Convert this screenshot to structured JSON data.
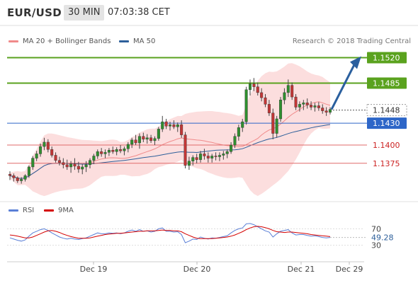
{
  "header": {
    "symbol": "EUR/USD",
    "timeframe": "30 MIN",
    "time": "07:03:38 CET"
  },
  "legend": {
    "bollinger": {
      "label": "MA 20 + Bollinger Bands",
      "color": "#f08a8a"
    },
    "ma50": {
      "label": "MA 50",
      "color": "#2d5f9a"
    },
    "rsi": {
      "label": "RSI",
      "color": "#5a7fd6"
    },
    "rsi_ma": {
      "label": "9MA",
      "color": "#d40000"
    }
  },
  "credit": "Research © 2018 Trading Central",
  "colors": {
    "target": "#5aa21e",
    "pivot": "#2d66c8",
    "support": "#e06a6a",
    "arrow": "#2a5f9e"
  },
  "levels": [
    {
      "value": 1.152,
      "label": "1.1520",
      "kind": "target"
    },
    {
      "value": 1.1485,
      "label": "1.1485",
      "kind": "target"
    },
    {
      "value": 1.1448,
      "label": "1.1448",
      "kind": "current"
    },
    {
      "value": 1.143,
      "label": "1.1430",
      "kind": "pivot"
    },
    {
      "value": 1.14,
      "label": "1.1400",
      "kind": "support"
    },
    {
      "value": 1.1375,
      "label": "1.1375",
      "kind": "support"
    }
  ],
  "chart_data": {
    "type": "candlestick",
    "x_labels": [
      "Dec 19",
      "Dec 20",
      "Dec 21",
      "Dec 29"
    ],
    "ylim": [
      1.1335,
      1.1535
    ],
    "candles": [
      [
        1.136,
        1.1364,
        1.1352,
        1.1358
      ],
      [
        1.1358,
        1.1361,
        1.135,
        1.1355
      ],
      [
        1.1355,
        1.1357,
        1.1348,
        1.1351
      ],
      [
        1.1351,
        1.1356,
        1.1347,
        1.1353
      ],
      [
        1.1353,
        1.136,
        1.135,
        1.1358
      ],
      [
        1.1358,
        1.1372,
        1.1355,
        1.137
      ],
      [
        1.137,
        1.1385,
        1.1366,
        1.1382
      ],
      [
        1.1382,
        1.1392,
        1.1378,
        1.1388
      ],
      [
        1.1388,
        1.1402,
        1.1384,
        1.1398
      ],
      [
        1.1398,
        1.141,
        1.1393,
        1.1404
      ],
      [
        1.1404,
        1.1408,
        1.139,
        1.1394
      ],
      [
        1.1394,
        1.1398,
        1.1383,
        1.1386
      ],
      [
        1.1386,
        1.139,
        1.1376,
        1.1379
      ],
      [
        1.1379,
        1.1384,
        1.1372,
        1.1376
      ],
      [
        1.1376,
        1.1382,
        1.1368,
        1.1373
      ],
      [
        1.1373,
        1.138,
        1.1366,
        1.137
      ],
      [
        1.137,
        1.1378,
        1.1362,
        1.1374
      ],
      [
        1.1374,
        1.1382,
        1.1366,
        1.1371
      ],
      [
        1.1371,
        1.1377,
        1.1362,
        1.1367
      ],
      [
        1.1367,
        1.1374,
        1.136,
        1.137
      ],
      [
        1.137,
        1.1378,
        1.1363,
        1.1373
      ],
      [
        1.1373,
        1.1382,
        1.1368,
        1.1379
      ],
      [
        1.1379,
        1.1388,
        1.1374,
        1.1385
      ],
      [
        1.1385,
        1.1394,
        1.1381,
        1.1391
      ],
      [
        1.1391,
        1.1396,
        1.1384,
        1.1388
      ],
      [
        1.1388,
        1.1394,
        1.1382,
        1.139
      ],
      [
        1.139,
        1.1396,
        1.1385,
        1.1393
      ],
      [
        1.1393,
        1.1398,
        1.1388,
        1.1391
      ],
      [
        1.1391,
        1.1397,
        1.1386,
        1.1394
      ],
      [
        1.1394,
        1.14,
        1.1389,
        1.1392
      ],
      [
        1.1392,
        1.1398,
        1.1386,
        1.1395
      ],
      [
        1.1395,
        1.1404,
        1.139,
        1.1401
      ],
      [
        1.1401,
        1.141,
        1.1396,
        1.1407
      ],
      [
        1.1407,
        1.1414,
        1.14,
        1.1403
      ],
      [
        1.1403,
        1.1416,
        1.1395,
        1.1412
      ],
      [
        1.1412,
        1.1417,
        1.1404,
        1.1408
      ],
      [
        1.1408,
        1.1415,
        1.1402,
        1.141
      ],
      [
        1.141,
        1.1414,
        1.1403,
        1.1406
      ],
      [
        1.1406,
        1.1412,
        1.14,
        1.1409
      ],
      [
        1.1409,
        1.1425,
        1.1406,
        1.1422
      ],
      [
        1.1422,
        1.144,
        1.1418,
        1.1432
      ],
      [
        1.1432,
        1.1436,
        1.1422,
        1.1426
      ],
      [
        1.1426,
        1.1432,
        1.142,
        1.1428
      ],
      [
        1.1428,
        1.1434,
        1.1422,
        1.1425
      ],
      [
        1.1425,
        1.1431,
        1.1418,
        1.1428
      ],
      [
        1.1428,
        1.1434,
        1.141,
        1.1414
      ],
      [
        1.1414,
        1.1418,
        1.1368,
        1.1372
      ],
      [
        1.1372,
        1.1384,
        1.1366,
        1.1378
      ],
      [
        1.1378,
        1.1386,
        1.1372,
        1.1383
      ],
      [
        1.1383,
        1.1388,
        1.1375,
        1.138
      ],
      [
        1.138,
        1.1392,
        1.1376,
        1.1388
      ],
      [
        1.1388,
        1.1395,
        1.138,
        1.1385
      ],
      [
        1.1385,
        1.139,
        1.1376,
        1.1382
      ],
      [
        1.1382,
        1.1388,
        1.1376,
        1.1385
      ],
      [
        1.1385,
        1.139,
        1.1379,
        1.1384
      ],
      [
        1.1384,
        1.139,
        1.1378,
        1.1386
      ],
      [
        1.1386,
        1.1392,
        1.138,
        1.1388
      ],
      [
        1.1388,
        1.1394,
        1.1382,
        1.1391
      ],
      [
        1.1391,
        1.1404,
        1.1388,
        1.14
      ],
      [
        1.14,
        1.1416,
        1.1396,
        1.1412
      ],
      [
        1.1412,
        1.1428,
        1.1406,
        1.1424
      ],
      [
        1.1424,
        1.1436,
        1.1418,
        1.1432
      ],
      [
        1.1432,
        1.148,
        1.1428,
        1.1476
      ],
      [
        1.1476,
        1.149,
        1.1468,
        1.1484
      ],
      [
        1.1484,
        1.1492,
        1.1474,
        1.148
      ],
      [
        1.148,
        1.1486,
        1.1468,
        1.1472
      ],
      [
        1.1472,
        1.1478,
        1.146,
        1.1465
      ],
      [
        1.1465,
        1.147,
        1.1452,
        1.1456
      ],
      [
        1.1456,
        1.1462,
        1.144,
        1.1444
      ],
      [
        1.1444,
        1.145,
        1.1408,
        1.1416
      ],
      [
        1.1416,
        1.144,
        1.141,
        1.1436
      ],
      [
        1.1436,
        1.1466,
        1.1432,
        1.1462
      ],
      [
        1.1462,
        1.1478,
        1.1456,
        1.1472
      ],
      [
        1.1472,
        1.149,
        1.1466,
        1.1482
      ],
      [
        1.1482,
        1.1486,
        1.1462,
        1.1466
      ],
      [
        1.1466,
        1.147,
        1.1448,
        1.1452
      ],
      [
        1.1452,
        1.146,
        1.1446,
        1.1456
      ],
      [
        1.1456,
        1.1462,
        1.1448,
        1.1458
      ],
      [
        1.1458,
        1.1464,
        1.145,
        1.1455
      ],
      [
        1.1455,
        1.146,
        1.1448,
        1.1452
      ],
      [
        1.1452,
        1.1458,
        1.1446,
        1.1454
      ],
      [
        1.1454,
        1.1459,
        1.1447,
        1.1451
      ],
      [
        1.1451,
        1.1456,
        1.1443,
        1.1447
      ],
      [
        1.1447,
        1.1452,
        1.144,
        1.1445
      ],
      [
        1.1445,
        1.1452,
        1.1442,
        1.1449
      ]
    ],
    "rsi": {
      "axis_ticks": [
        70,
        30
      ],
      "last_value": "49.28",
      "values": [
        48,
        45,
        42,
        40,
        43,
        52,
        60,
        64,
        68,
        70,
        66,
        60,
        55,
        50,
        47,
        45,
        47,
        45,
        44,
        46,
        48,
        52,
        56,
        60,
        58,
        58,
        60,
        59,
        60,
        58,
        60,
        64,
        67,
        64,
        68,
        64,
        65,
        62,
        64,
        70,
        72,
        64,
        64,
        62,
        63,
        56,
        36,
        40,
        45,
        44,
        50,
        47,
        45,
        48,
        47,
        49,
        51,
        53,
        60,
        66,
        70,
        72,
        82,
        83,
        80,
        75,
        70,
        65,
        62,
        50,
        58,
        64,
        66,
        68,
        60,
        55,
        56,
        56,
        54,
        52,
        53,
        51,
        49,
        48,
        49
      ],
      "ma9": [
        55,
        54,
        52,
        50,
        48,
        48,
        50,
        54,
        58,
        62,
        65,
        66,
        64,
        61,
        57,
        54,
        51,
        49,
        47,
        47,
        47,
        48,
        50,
        52,
        54,
        56,
        57,
        58,
        59,
        59,
        60,
        61,
        62,
        63,
        64,
        64,
        65,
        65,
        65,
        66,
        67,
        66,
        66,
        65,
        65,
        63,
        58,
        54,
        50,
        47,
        46,
        46,
        46,
        46,
        47,
        48,
        49,
        50,
        52,
        55,
        59,
        63,
        68,
        72,
        75,
        76,
        75,
        73,
        70,
        66,
        63,
        62,
        61,
        62,
        62,
        61,
        60,
        59,
        58,
        56,
        55,
        54,
        53,
        52,
        51
      ]
    }
  }
}
